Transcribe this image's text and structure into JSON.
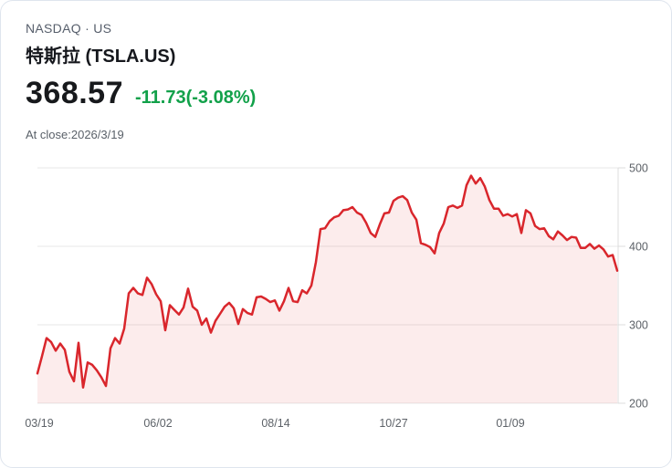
{
  "header": {
    "exchange_line": "NASDAQ · US",
    "title": "特斯拉 (TSLA.US)",
    "price": "368.57",
    "change": "-11.73(-3.08%)",
    "as_of": "At close:2026/3/19"
  },
  "colors": {
    "change_green": "#12a14a",
    "line_red": "#d9262c",
    "area_fill": "rgba(219,40,44,0.09)",
    "gridline": "#e7e7e7",
    "axis_line": "#dcdcdc",
    "tick_label": "#5d6268"
  },
  "chart_data": {
    "type": "area",
    "title": "TSLA.US price history (1 year)",
    "x_tick_labels": [
      "03/19",
      "06/02",
      "08/14",
      "10/27",
      "01/09"
    ],
    "y_ticks": [
      500,
      400,
      300,
      200
    ],
    "ylim": [
      200,
      500
    ],
    "legend": "none",
    "grid": "horizontal",
    "values": [
      238,
      260,
      283,
      278,
      267,
      276,
      268,
      240,
      228,
      277,
      220,
      252,
      249,
      242,
      233,
      222,
      270,
      283,
      276,
      295,
      340,
      347,
      340,
      338,
      360,
      352,
      339,
      330,
      293,
      325,
      319,
      313,
      322,
      346,
      323,
      318,
      300,
      308,
      290,
      305,
      314,
      323,
      328,
      321,
      301,
      320,
      315,
      313,
      335,
      336,
      333,
      329,
      331,
      318,
      330,
      347,
      330,
      329,
      344,
      340,
      350,
      380,
      422,
      423,
      432,
      437,
      439,
      446,
      447,
      450,
      443,
      440,
      430,
      417,
      412,
      428,
      442,
      443,
      458,
      462,
      464,
      459,
      443,
      434,
      404,
      402,
      399,
      391,
      417,
      429,
      450,
      452,
      449,
      452,
      478,
      490,
      480,
      487,
      476,
      459,
      448,
      448,
      439,
      441,
      438,
      441,
      417,
      446,
      442,
      426,
      422,
      423,
      413,
      409,
      419,
      414,
      408,
      412,
      411,
      398,
      398,
      403,
      397,
      401,
      396,
      387,
      389,
      369
    ]
  }
}
